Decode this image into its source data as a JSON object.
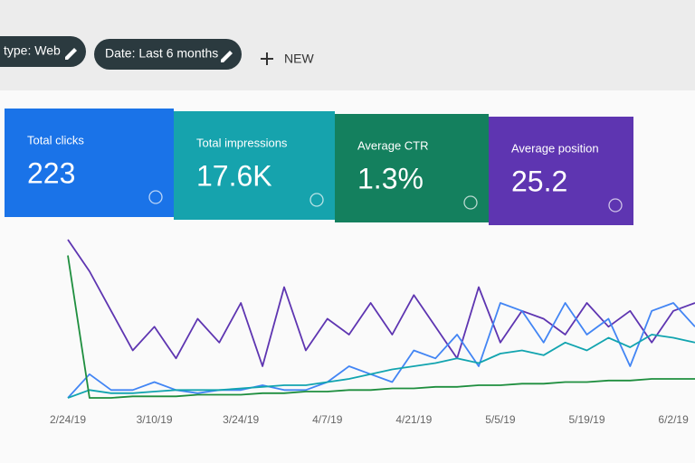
{
  "filters": [
    {
      "label": "type: Web"
    },
    {
      "label": "Date: Last 6 months"
    }
  ],
  "new_button": "NEW",
  "metrics": [
    {
      "label": "Total clicks",
      "value": "223",
      "color": "#1a73e8"
    },
    {
      "label": "Total impressions",
      "value": "17.6K",
      "color": "#16a3ad"
    },
    {
      "label": "Average CTR",
      "value": "1.3%",
      "color": "#14805e"
    },
    {
      "label": "Average position",
      "value": "25.2",
      "color": "#5e35b1"
    }
  ],
  "chart_data": {
    "type": "line",
    "x": [
      "2/24/19",
      null,
      null,
      null,
      "3/10/19",
      null,
      null,
      null,
      "3/24/19",
      null,
      null,
      null,
      "4/7/19",
      null,
      null,
      null,
      "4/21/19",
      null,
      null,
      null,
      "5/5/19",
      null,
      null,
      null,
      "5/19/19",
      null,
      null,
      null,
      "6/2/19",
      null
    ],
    "ylim": [
      0,
      100
    ],
    "series": [
      {
        "color": "#5e35b1",
        "values": [
          100,
          80,
          55,
          30,
          45,
          25,
          50,
          35,
          60,
          20,
          70,
          30,
          50,
          40,
          60,
          40,
          65,
          45,
          25,
          70,
          35,
          55,
          50,
          40,
          60,
          45,
          55,
          35,
          55,
          60
        ]
      },
      {
        "color": "#4285f4",
        "values": [
          0,
          15,
          5,
          5,
          10,
          5,
          3,
          5,
          5,
          8,
          5,
          5,
          10,
          20,
          15,
          10,
          30,
          25,
          40,
          20,
          60,
          55,
          35,
          60,
          40,
          50,
          20,
          55,
          60,
          45
        ]
      },
      {
        "color": "#12a4af",
        "values": [
          0,
          5,
          3,
          3,
          4,
          5,
          5,
          5,
          6,
          7,
          8,
          8,
          10,
          12,
          15,
          18,
          20,
          22,
          25,
          22,
          28,
          30,
          27,
          35,
          30,
          38,
          32,
          40,
          38,
          35
        ]
      },
      {
        "color": "#1e8e3e",
        "values": [
          90,
          0,
          0,
          1,
          1,
          1,
          2,
          2,
          2,
          3,
          3,
          4,
          4,
          5,
          5,
          6,
          6,
          7,
          7,
          8,
          8,
          9,
          9,
          10,
          10,
          11,
          11,
          12,
          12,
          12
        ]
      }
    ]
  }
}
